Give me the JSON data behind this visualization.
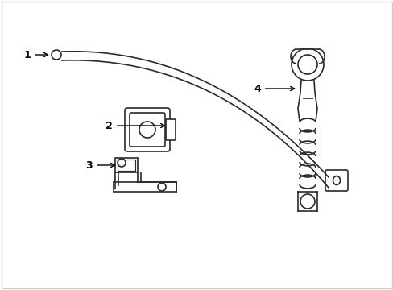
{
  "background_color": "#ffffff",
  "line_color": "#2a2a2a",
  "line_width": 1.2,
  "label_color": "#000000",
  "label_fontsize": 9,
  "figsize": [
    4.89,
    3.6
  ],
  "dpi": 100,
  "border_color": "#cccccc"
}
